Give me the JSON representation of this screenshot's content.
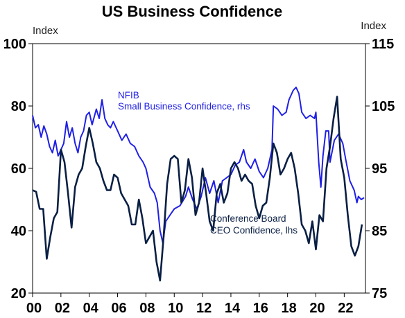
{
  "chart_data": {
    "type": "line",
    "title": "US Business Confidence",
    "left_axis": {
      "label": "Index",
      "ylim": [
        20,
        100
      ],
      "ticks": [
        "100",
        "80",
        "60",
        "40",
        "20"
      ]
    },
    "right_axis": {
      "label": "Index",
      "ylim": [
        75,
        115
      ],
      "ticks": [
        "115",
        "105",
        "95",
        "85",
        "75"
      ]
    },
    "x_range": [
      2000,
      2023.5
    ],
    "x_ticks": [
      {
        "value": 2000,
        "label": "00"
      },
      {
        "value": 2002,
        "label": "02"
      },
      {
        "value": 2004,
        "label": "04"
      },
      {
        "value": 2006,
        "label": "06"
      },
      {
        "value": 2008,
        "label": "08"
      },
      {
        "value": 2010,
        "label": "10"
      },
      {
        "value": 2012,
        "label": "12"
      },
      {
        "value": 2014,
        "label": "14"
      },
      {
        "value": 2016,
        "label": "16"
      },
      {
        "value": 2018,
        "label": "18"
      },
      {
        "value": 2020,
        "label": "20"
      },
      {
        "value": 2022,
        "label": "22"
      }
    ],
    "grid": false,
    "series": [
      {
        "name": "NFIB Small Business Confidence",
        "axis": "right",
        "color": "#1f1fe6",
        "label_lines": [
          "NFIB",
          "Small Business Confidence, rhs"
        ],
        "points": [
          [
            2000.0,
            103.5
          ],
          [
            2000.2,
            101.5
          ],
          [
            2000.4,
            102.0
          ],
          [
            2000.6,
            100.0
          ],
          [
            2000.8,
            101.8
          ],
          [
            2001.0,
            100.5
          ],
          [
            2001.2,
            98.5
          ],
          [
            2001.4,
            97.5
          ],
          [
            2001.6,
            99.5
          ],
          [
            2001.8,
            97.0
          ],
          [
            2002.0,
            98.0
          ],
          [
            2002.2,
            99.0
          ],
          [
            2002.4,
            102.5
          ],
          [
            2002.6,
            100.0
          ],
          [
            2002.8,
            101.5
          ],
          [
            2003.0,
            99.0
          ],
          [
            2003.2,
            97.5
          ],
          [
            2003.4,
            100.0
          ],
          [
            2003.6,
            101.0
          ],
          [
            2003.8,
            103.5
          ],
          [
            2004.0,
            104.0
          ],
          [
            2004.2,
            102.0
          ],
          [
            2004.5,
            104.5
          ],
          [
            2004.7,
            103.0
          ],
          [
            2004.9,
            106.0
          ],
          [
            2005.1,
            103.0
          ],
          [
            2005.3,
            102.0
          ],
          [
            2005.5,
            101.5
          ],
          [
            2005.7,
            102.5
          ],
          [
            2006.0,
            101.0
          ],
          [
            2006.3,
            99.5
          ],
          [
            2006.6,
            100.5
          ],
          [
            2006.9,
            99.0
          ],
          [
            2007.2,
            98.5
          ],
          [
            2007.5,
            97.0
          ],
          [
            2007.8,
            96.0
          ],
          [
            2008.0,
            95.0
          ],
          [
            2008.3,
            92.0
          ],
          [
            2008.6,
            91.0
          ],
          [
            2008.8,
            89.5
          ],
          [
            2009.0,
            85.0
          ],
          [
            2009.2,
            83.0
          ],
          [
            2009.4,
            86.5
          ],
          [
            2009.7,
            87.5
          ],
          [
            2010.0,
            88.5
          ],
          [
            2010.4,
            89.0
          ],
          [
            2010.8,
            90.5
          ],
          [
            2011.0,
            92.0
          ],
          [
            2011.3,
            90.0
          ],
          [
            2011.6,
            88.5
          ],
          [
            2011.9,
            90.5
          ],
          [
            2012.2,
            93.5
          ],
          [
            2012.5,
            91.0
          ],
          [
            2012.8,
            93.0
          ],
          [
            2013.1,
            89.5
          ],
          [
            2013.4,
            93.0
          ],
          [
            2013.7,
            93.5
          ],
          [
            2014.0,
            94.0
          ],
          [
            2014.3,
            95.5
          ],
          [
            2014.6,
            96.0
          ],
          [
            2014.9,
            98.0
          ],
          [
            2015.1,
            96.0
          ],
          [
            2015.4,
            95.0
          ],
          [
            2015.7,
            96.5
          ],
          [
            2016.0,
            94.5
          ],
          [
            2016.3,
            93.5
          ],
          [
            2016.6,
            95.0
          ],
          [
            2016.9,
            98.0
          ],
          [
            2017.0,
            105.0
          ],
          [
            2017.3,
            104.5
          ],
          [
            2017.6,
            103.5
          ],
          [
            2017.9,
            104.0
          ],
          [
            2018.1,
            106.0
          ],
          [
            2018.4,
            107.5
          ],
          [
            2018.6,
            108.0
          ],
          [
            2018.8,
            107.0
          ],
          [
            2019.0,
            104.0
          ],
          [
            2019.3,
            103.0
          ],
          [
            2019.6,
            103.5
          ],
          [
            2019.9,
            103.0
          ],
          [
            2020.0,
            104.0
          ],
          [
            2020.2,
            96.0
          ],
          [
            2020.35,
            92.0
          ],
          [
            2020.5,
            97.0
          ],
          [
            2020.7,
            101.0
          ],
          [
            2020.9,
            101.0
          ],
          [
            2021.0,
            96.0
          ],
          [
            2021.3,
            99.5
          ],
          [
            2021.6,
            100.5
          ],
          [
            2021.9,
            99.0
          ],
          [
            2022.1,
            96.5
          ],
          [
            2022.4,
            93.0
          ],
          [
            2022.7,
            91.5
          ],
          [
            2022.9,
            89.5
          ],
          [
            2023.0,
            90.5
          ],
          [
            2023.2,
            90.0
          ],
          [
            2023.4,
            90.3
          ]
        ]
      },
      {
        "name": "Conference Board CEO Confidence",
        "axis": "left",
        "color": "#0a1f44",
        "label_lines": [
          "Conference Board",
          "CEO Confidence, lhs"
        ],
        "points": [
          [
            2000.0,
            53.0
          ],
          [
            2000.25,
            52.5
          ],
          [
            2000.5,
            47.0
          ],
          [
            2000.75,
            47.0
          ],
          [
            2001.0,
            31.0
          ],
          [
            2001.25,
            38.0
          ],
          [
            2001.5,
            44.0
          ],
          [
            2001.75,
            46.0
          ],
          [
            2002.0,
            66.0
          ],
          [
            2002.25,
            62.0
          ],
          [
            2002.5,
            52.0
          ],
          [
            2002.75,
            41.0
          ],
          [
            2003.0,
            54.0
          ],
          [
            2003.25,
            58.0
          ],
          [
            2003.5,
            60.0
          ],
          [
            2003.75,
            67.0
          ],
          [
            2004.0,
            73.0
          ],
          [
            2004.25,
            68.0
          ],
          [
            2004.5,
            62.0
          ],
          [
            2004.75,
            60.0
          ],
          [
            2005.0,
            56.0
          ],
          [
            2005.25,
            53.0
          ],
          [
            2005.5,
            53.0
          ],
          [
            2005.75,
            58.0
          ],
          [
            2006.0,
            57.0
          ],
          [
            2006.25,
            52.0
          ],
          [
            2006.5,
            50.0
          ],
          [
            2006.75,
            48.0
          ],
          [
            2007.0,
            42.0
          ],
          [
            2007.25,
            42.0
          ],
          [
            2007.5,
            50.0
          ],
          [
            2007.75,
            44.0
          ],
          [
            2008.0,
            36.0
          ],
          [
            2008.25,
            38.0
          ],
          [
            2008.5,
            40.0
          ],
          [
            2008.75,
            30.0
          ],
          [
            2009.0,
            24.0
          ],
          [
            2009.25,
            38.0
          ],
          [
            2009.5,
            55.0
          ],
          [
            2009.75,
            63.0
          ],
          [
            2010.0,
            64.0
          ],
          [
            2010.25,
            63.0
          ],
          [
            2010.5,
            49.0
          ],
          [
            2010.75,
            53.0
          ],
          [
            2011.0,
            63.0
          ],
          [
            2011.25,
            57.0
          ],
          [
            2011.5,
            45.0
          ],
          [
            2011.75,
            49.0
          ],
          [
            2012.0,
            60.0
          ],
          [
            2012.25,
            52.0
          ],
          [
            2012.5,
            43.0
          ],
          [
            2012.75,
            40.0
          ],
          [
            2013.0,
            52.0
          ],
          [
            2013.25,
            55.0
          ],
          [
            2013.5,
            49.0
          ],
          [
            2013.75,
            52.0
          ],
          [
            2014.0,
            60.0
          ],
          [
            2014.25,
            62.0
          ],
          [
            2014.5,
            60.0
          ],
          [
            2014.75,
            56.0
          ],
          [
            2015.0,
            58.0
          ],
          [
            2015.25,
            56.0
          ],
          [
            2015.5,
            55.0
          ],
          [
            2015.75,
            48.0
          ],
          [
            2016.0,
            44.0
          ],
          [
            2016.25,
            48.0
          ],
          [
            2016.5,
            49.0
          ],
          [
            2016.75,
            57.0
          ],
          [
            2017.0,
            68.0
          ],
          [
            2017.25,
            65.0
          ],
          [
            2017.5,
            58.0
          ],
          [
            2017.75,
            60.0
          ],
          [
            2018.0,
            63.0
          ],
          [
            2018.25,
            65.0
          ],
          [
            2018.5,
            60.0
          ],
          [
            2018.75,
            52.0
          ],
          [
            2019.0,
            42.0
          ],
          [
            2019.25,
            40.0
          ],
          [
            2019.5,
            36.0
          ],
          [
            2019.75,
            43.0
          ],
          [
            2020.0,
            34.0
          ],
          [
            2020.25,
            45.0
          ],
          [
            2020.5,
            43.0
          ],
          [
            2020.75,
            60.0
          ],
          [
            2021.0,
            67.0
          ],
          [
            2021.25,
            76.0
          ],
          [
            2021.5,
            83.0
          ],
          [
            2021.75,
            63.0
          ],
          [
            2022.0,
            57.0
          ],
          [
            2022.25,
            45.0
          ],
          [
            2022.5,
            35.0
          ],
          [
            2022.75,
            32.0
          ],
          [
            2023.0,
            35.0
          ],
          [
            2023.25,
            42.0
          ]
        ]
      }
    ]
  }
}
